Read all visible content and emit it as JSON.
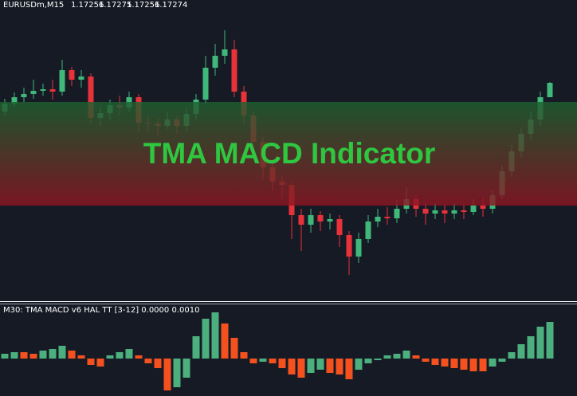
{
  "chart_data": [
    {
      "type": "candlestick",
      "symbol": "EURUSDm,M15",
      "title": "TMA MACD Indicator",
      "ylim": [
        1.17,
        1.17378
      ],
      "band": [
        1.1712,
        1.1725
      ],
      "band_colors": [
        "#1e6030",
        "#8e1522"
      ],
      "up_color": "#3fb87a",
      "down_color": "#e8323a",
      "open": [
        1.17238,
        1.17248,
        1.17256,
        1.1726,
        1.17264,
        1.17266,
        1.17263,
        1.1729,
        1.17278,
        1.17282,
        1.1723,
        1.17236,
        1.17246,
        1.17243,
        1.17256,
        1.17224,
        1.17223,
        1.1722,
        1.17228,
        1.1722,
        1.17235,
        1.17253,
        1.17293,
        1.17308,
        1.17316,
        1.17263,
        1.17233,
        1.172,
        1.17168,
        1.1715,
        1.17146,
        1.17108,
        1.17096,
        1.17108,
        1.171,
        1.17103,
        1.17083,
        1.17056,
        1.17078,
        1.171,
        1.17106,
        1.17104,
        1.17116,
        1.17128,
        1.17116,
        1.1711,
        1.17114,
        1.1711,
        1.17114,
        1.17112,
        1.1712,
        1.17116,
        1.17133,
        1.17163,
        1.17188,
        1.1721,
        1.17228,
        1.17256
      ],
      "high": [
        1.17254,
        1.17262,
        1.17268,
        1.17278,
        1.17273,
        1.17278,
        1.17303,
        1.17294,
        1.1729,
        1.17286,
        1.17243,
        1.17253,
        1.17258,
        1.17263,
        1.1726,
        1.17233,
        1.1723,
        1.17238,
        1.17233,
        1.17243,
        1.1726,
        1.17308,
        1.17323,
        1.1734,
        1.17328,
        1.1727,
        1.17238,
        1.17206,
        1.17173,
        1.17158,
        1.1715,
        1.17116,
        1.17116,
        1.17113,
        1.1711,
        1.17108,
        1.17088,
        1.17086,
        1.17108,
        1.17116,
        1.17118,
        1.17128,
        1.17143,
        1.17133,
        1.17123,
        1.17123,
        1.1712,
        1.17123,
        1.17122,
        1.17128,
        1.1713,
        1.1714,
        1.1717,
        1.17196,
        1.17218,
        1.17238,
        1.17263,
        1.17275
      ],
      "low": [
        1.17232,
        1.17244,
        1.1725,
        1.17254,
        1.17258,
        1.17253,
        1.17258,
        1.1727,
        1.17268,
        1.17223,
        1.1722,
        1.17228,
        1.17233,
        1.17238,
        1.17213,
        1.17213,
        1.17208,
        1.17216,
        1.1721,
        1.17213,
        1.17228,
        1.17248,
        1.17283,
        1.17298,
        1.17256,
        1.17223,
        1.17188,
        1.17153,
        1.17138,
        1.17128,
        1.17078,
        1.17063,
        1.17086,
        1.17088,
        1.1709,
        1.17068,
        1.17033,
        1.17048,
        1.17073,
        1.17093,
        1.17096,
        1.17098,
        1.1711,
        1.17106,
        1.17096,
        1.17103,
        1.17098,
        1.17103,
        1.17103,
        1.17108,
        1.17106,
        1.1711,
        1.17128,
        1.17156,
        1.1718,
        1.17203,
        1.1722,
        1.17256
      ],
      "close": [
        1.17248,
        1.17256,
        1.1726,
        1.17264,
        1.17266,
        1.17263,
        1.1729,
        1.17278,
        1.17282,
        1.1723,
        1.17236,
        1.17246,
        1.17243,
        1.17256,
        1.17224,
        1.17223,
        1.1722,
        1.17228,
        1.1722,
        1.17235,
        1.17253,
        1.17293,
        1.17308,
        1.17316,
        1.17263,
        1.17233,
        1.172,
        1.17168,
        1.1715,
        1.17146,
        1.17108,
        1.17096,
        1.17108,
        1.171,
        1.17103,
        1.17083,
        1.17056,
        1.17078,
        1.171,
        1.17106,
        1.17104,
        1.17116,
        1.17128,
        1.17116,
        1.1711,
        1.17114,
        1.1711,
        1.17114,
        1.17112,
        1.1712,
        1.17116,
        1.17133,
        1.17163,
        1.17188,
        1.1721,
        1.17228,
        1.17256,
        1.17274
      ]
    },
    {
      "type": "histogram",
      "title": "M30: TMA MACD v6 HAL TT [3-12] 0.0000 0.0010",
      "ylim": [
        -47,
        62
      ],
      "up_color": "#4caf7e",
      "down_color": "#f4511e",
      "values": [
        6,
        8,
        8,
        6,
        10,
        12,
        16,
        10,
        4,
        -8,
        -10,
        4,
        8,
        12,
        4,
        -6,
        -12,
        -40,
        -36,
        -24,
        28,
        50,
        58,
        44,
        26,
        8,
        -6,
        -4,
        -6,
        -12,
        -20,
        -24,
        -18,
        -14,
        -18,
        -20,
        -26,
        -14,
        -6,
        -2,
        4,
        6,
        10,
        4,
        -4,
        -8,
        -10,
        -12,
        -14,
        -16,
        -16,
        -10,
        -4,
        8,
        18,
        28,
        40,
        46
      ]
    }
  ]
}
